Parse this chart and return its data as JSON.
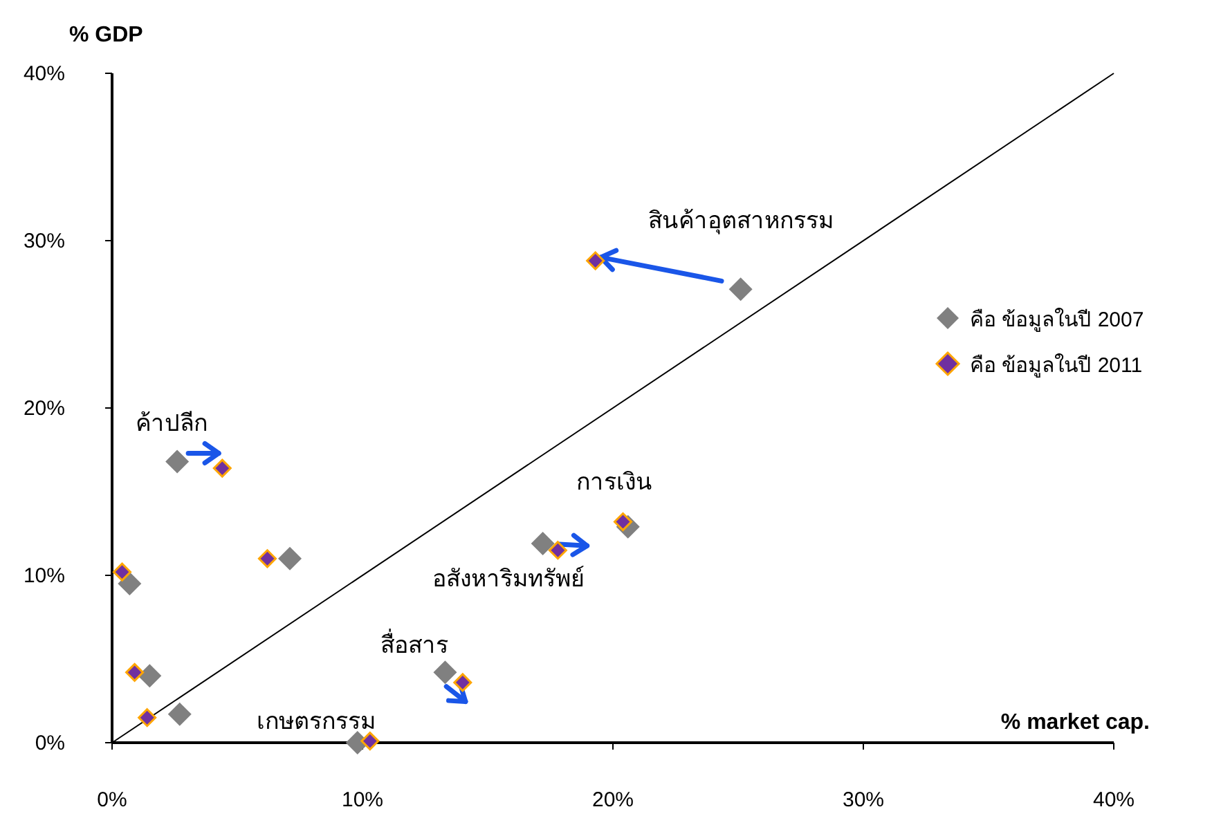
{
  "chart_data": {
    "type": "scatter",
    "xlabel": "% market cap.",
    "ylabel": "% GDP",
    "xlim": [
      0,
      40
    ],
    "ylim": [
      0,
      40
    ],
    "xticks": [
      {
        "value": 0,
        "label": "0%"
      },
      {
        "value": 10,
        "label": "10%"
      },
      {
        "value": 20,
        "label": "20%"
      },
      {
        "value": 30,
        "label": "30%"
      },
      {
        "value": 40,
        "label": "40%"
      }
    ],
    "yticks": [
      {
        "value": 0,
        "label": "0%"
      },
      {
        "value": 10,
        "label": "10%"
      },
      {
        "value": 20,
        "label": "20%"
      },
      {
        "value": 30,
        "label": "30%"
      },
      {
        "value": 40,
        "label": "40%"
      }
    ],
    "marker": "diamond",
    "legend": "right",
    "grid": false,
    "series": [
      {
        "name": "คือ ข้อมูลในปี 2007",
        "color": "#808080",
        "x": [
          2.6,
          7.1,
          0.7,
          1.5,
          2.7,
          9.8,
          13.3,
          17.2,
          20.6,
          25.1
        ],
        "values": [
          16.8,
          11.0,
          9.5,
          4.0,
          1.7,
          0,
          4.2,
          11.9,
          12.9,
          27.1
        ]
      },
      {
        "name": "คือ ข้อมูลในปี 2011",
        "color": "#7030a0",
        "x": [
          4.4,
          6.2,
          0.4,
          0.9,
          1.4,
          10.3,
          14.0,
          17.8,
          20.4,
          19.3
        ],
        "values": [
          16.4,
          11.0,
          10.2,
          4.2,
          1.5,
          0.1,
          3.6,
          11.5,
          13.2,
          28.8
        ]
      },
      {
        "type": "line",
        "color": "#000000",
        "marker": "none",
        "line_style": "solid",
        "x": [
          0,
          40
        ],
        "values": [
          0,
          40
        ]
      }
    ],
    "annotations": [
      {
        "text": "สินค้าอุตสาหกรรม",
        "x": 25.1,
        "y": 27.1
      },
      {
        "text": "ค้าปลีก",
        "x": 2.6,
        "y": 16.8
      },
      {
        "text": "การเงิน",
        "x": 20.6,
        "y": 12.9
      },
      {
        "text": "อสังหาริมทรัพย์",
        "x": 17.2,
        "y": 11.9
      },
      {
        "text": "สื่อสาร",
        "x": 13.3,
        "y": 4.2
      },
      {
        "text": "เกษตรกรรม",
        "x": 9.8,
        "y": 0
      }
    ]
  }
}
